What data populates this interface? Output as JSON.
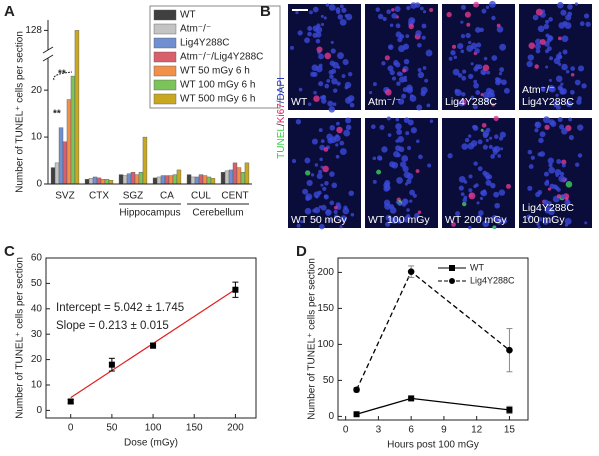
{
  "chart_data": [
    {
      "panel": "A",
      "type": "grouped_bar",
      "ylabel": "Number of TUNEL⁺ cells per section",
      "categories": [
        "SVZ",
        "CTX",
        "SGZ",
        "CA",
        "CUL",
        "CENT"
      ],
      "groups": [
        {
          "name": "Hippocampus",
          "members": [
            "SGZ",
            "CA"
          ]
        },
        {
          "name": "Cerebellum",
          "members": [
            "CUL",
            "CENT"
          ]
        }
      ],
      "series": [
        {
          "name": "WT",
          "color": "#404040",
          "values": [
            3.5,
            1,
            2,
            1.3,
            2,
            2.5
          ]
        },
        {
          "name": "Atm⁻/⁻",
          "color": "#c4c4c4",
          "values": [
            4.5,
            1.2,
            1.8,
            1.5,
            1.5,
            2.8
          ]
        },
        {
          "name": "Lig4Y288C",
          "color": "#6f8fd0",
          "values": [
            12,
            1.5,
            2.2,
            1.8,
            1.5,
            3
          ]
        },
        {
          "name": "Atm⁻/⁻/Lig4Y288C",
          "color": "#d95f6a",
          "values": [
            9,
            1.3,
            2.5,
            1.8,
            2,
            4.5
          ]
        },
        {
          "name": "WT 50 mGy 6 h",
          "color": "#f0904a",
          "values": [
            18,
            1,
            2,
            1.8,
            1.8,
            3.5
          ]
        },
        {
          "name": "WT 100 mGy 6 h",
          "color": "#7cc35a",
          "values": [
            23,
            1,
            2.5,
            2,
            1.5,
            2.5
          ]
        },
        {
          "name": "WT 500 mGy 6 h",
          "color": "#c8a820",
          "values": [
            128,
            0.8,
            10,
            3,
            1.2,
            4.5
          ]
        }
      ],
      "ylim": [
        0,
        130
      ],
      "ybreak": [
        26,
        125
      ],
      "yticks": [
        0,
        10,
        20,
        128
      ],
      "annotations": [
        "**",
        "**"
      ]
    },
    {
      "panel": "C",
      "type": "scatter",
      "xlabel": "Dose (mGy)",
      "ylabel": "Number of TUNEL⁺ cells per section",
      "x": [
        0,
        50,
        100,
        200
      ],
      "values": [
        3.5,
        18,
        25.5,
        47.5
      ],
      "errors": [
        0.8,
        2.5,
        1,
        3
      ],
      "color": "#000000",
      "fit": {
        "intercept": 5.042,
        "slope": 0.213,
        "color": "#e02020",
        "intercept_label": "Intercept = 5.042 ± 1.745",
        "slope_label": "Slope = 0.213 ± 0.015"
      },
      "xlim": [
        -30,
        225
      ],
      "ylim": [
        -3,
        60
      ],
      "xticks": [
        0,
        50,
        100,
        150,
        200
      ],
      "yticks": [
        0,
        10,
        20,
        30,
        40,
        50,
        60
      ]
    },
    {
      "panel": "D",
      "type": "line",
      "xlabel": "Hours post 100 mGy",
      "ylabel": "Number of TUNEL⁺ cells per section",
      "x": [
        1,
        6,
        15
      ],
      "series": [
        {
          "name": "WT",
          "color": "#000000",
          "marker": "square",
          "dashed": false,
          "values": [
            3,
            25,
            9
          ],
          "errors": [
            1,
            2,
            5
          ]
        },
        {
          "name": "Lig4Y288C",
          "color": "#000000",
          "marker": "circle",
          "dashed": true,
          "values": [
            37,
            201,
            92
          ],
          "errors": [
            3,
            8,
            30
          ]
        }
      ],
      "xlim": [
        -0.7,
        16.7
      ],
      "ylim": [
        -5,
        220
      ],
      "xticks": [
        0,
        3,
        6,
        9,
        12,
        15
      ],
      "yticks": [
        0,
        50,
        100,
        150,
        200
      ]
    }
  ],
  "figure_b": {
    "panel": "B",
    "stain_label": [
      {
        "text": "TUNEL",
        "color": "#30d040"
      },
      {
        "text": "/",
        "color": "#222222"
      },
      {
        "text": "Ki67",
        "color": "#e02060"
      },
      {
        "text": "/DAPI",
        "color": "#2030c0"
      }
    ],
    "images": [
      [
        "WT"
      ],
      [
        "Atm⁻/⁻"
      ],
      [
        "Lig4Y288C"
      ],
      [
        "Atm⁻/⁻",
        "Lig4Y288C"
      ],
      [
        "WT 50 mGy"
      ],
      [
        "WT 100 mGy"
      ],
      [
        "WT 200 mGy"
      ],
      [
        "Lig4Y288C",
        "100 mGy"
      ]
    ]
  }
}
